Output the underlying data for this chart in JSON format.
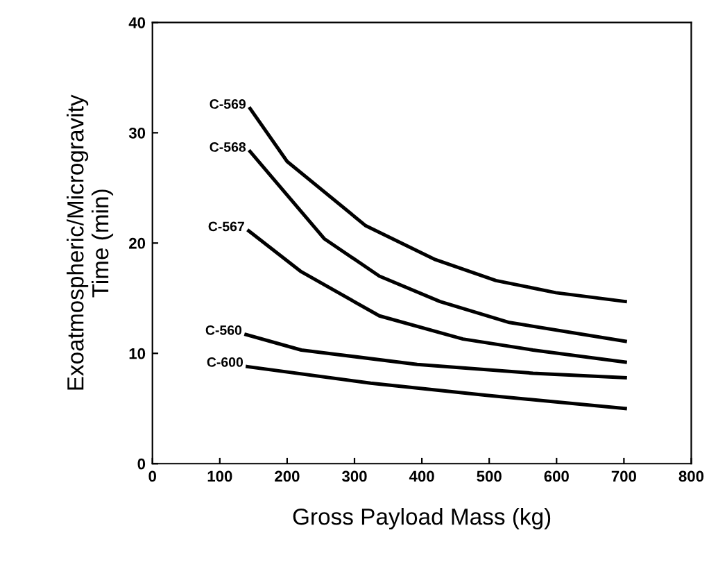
{
  "chart_data": {
    "type": "line",
    "xlabel": "Gross Payload Mass (kg)",
    "ylabel": "Exoatmospheric/Microgravity\nTime (min)",
    "xlim": [
      0,
      800
    ],
    "xticks": [
      0,
      100,
      200,
      300,
      400,
      500,
      600,
      700,
      800
    ],
    "ylim": [
      0,
      40
    ],
    "yticks": [
      0,
      10,
      20,
      30,
      40
    ],
    "grid": false,
    "legend": false,
    "marker": "none",
    "line_style": "solid",
    "series": [
      {
        "name": "C-569",
        "color": "#000000",
        "x": [
          145,
          200,
          316,
          420,
          510,
          599,
          702
        ],
        "values": [
          32.2,
          27.4,
          21.6,
          18.5,
          16.6,
          15.5,
          14.7
        ]
      },
      {
        "name": "C-568",
        "color": "#000000",
        "x": [
          145,
          255,
          337,
          427,
          530,
          702
        ],
        "values": [
          28.3,
          20.4,
          17.0,
          14.7,
          12.8,
          11.1
        ]
      },
      {
        "name": "C-567",
        "color": "#000000",
        "x": [
          143,
          221,
          337,
          461,
          565,
          702
        ],
        "values": [
          21.1,
          17.4,
          13.4,
          11.3,
          10.3,
          9.2
        ]
      },
      {
        "name": "C-560",
        "color": "#000000",
        "x": [
          139,
          221,
          393,
          565,
          702
        ],
        "values": [
          11.7,
          10.3,
          9.0,
          8.2,
          7.8
        ]
      },
      {
        "name": "C-600",
        "color": "#000000",
        "x": [
          141,
          324,
          496,
          702
        ],
        "values": [
          8.8,
          7.3,
          6.2,
          5.0
        ]
      }
    ]
  }
}
